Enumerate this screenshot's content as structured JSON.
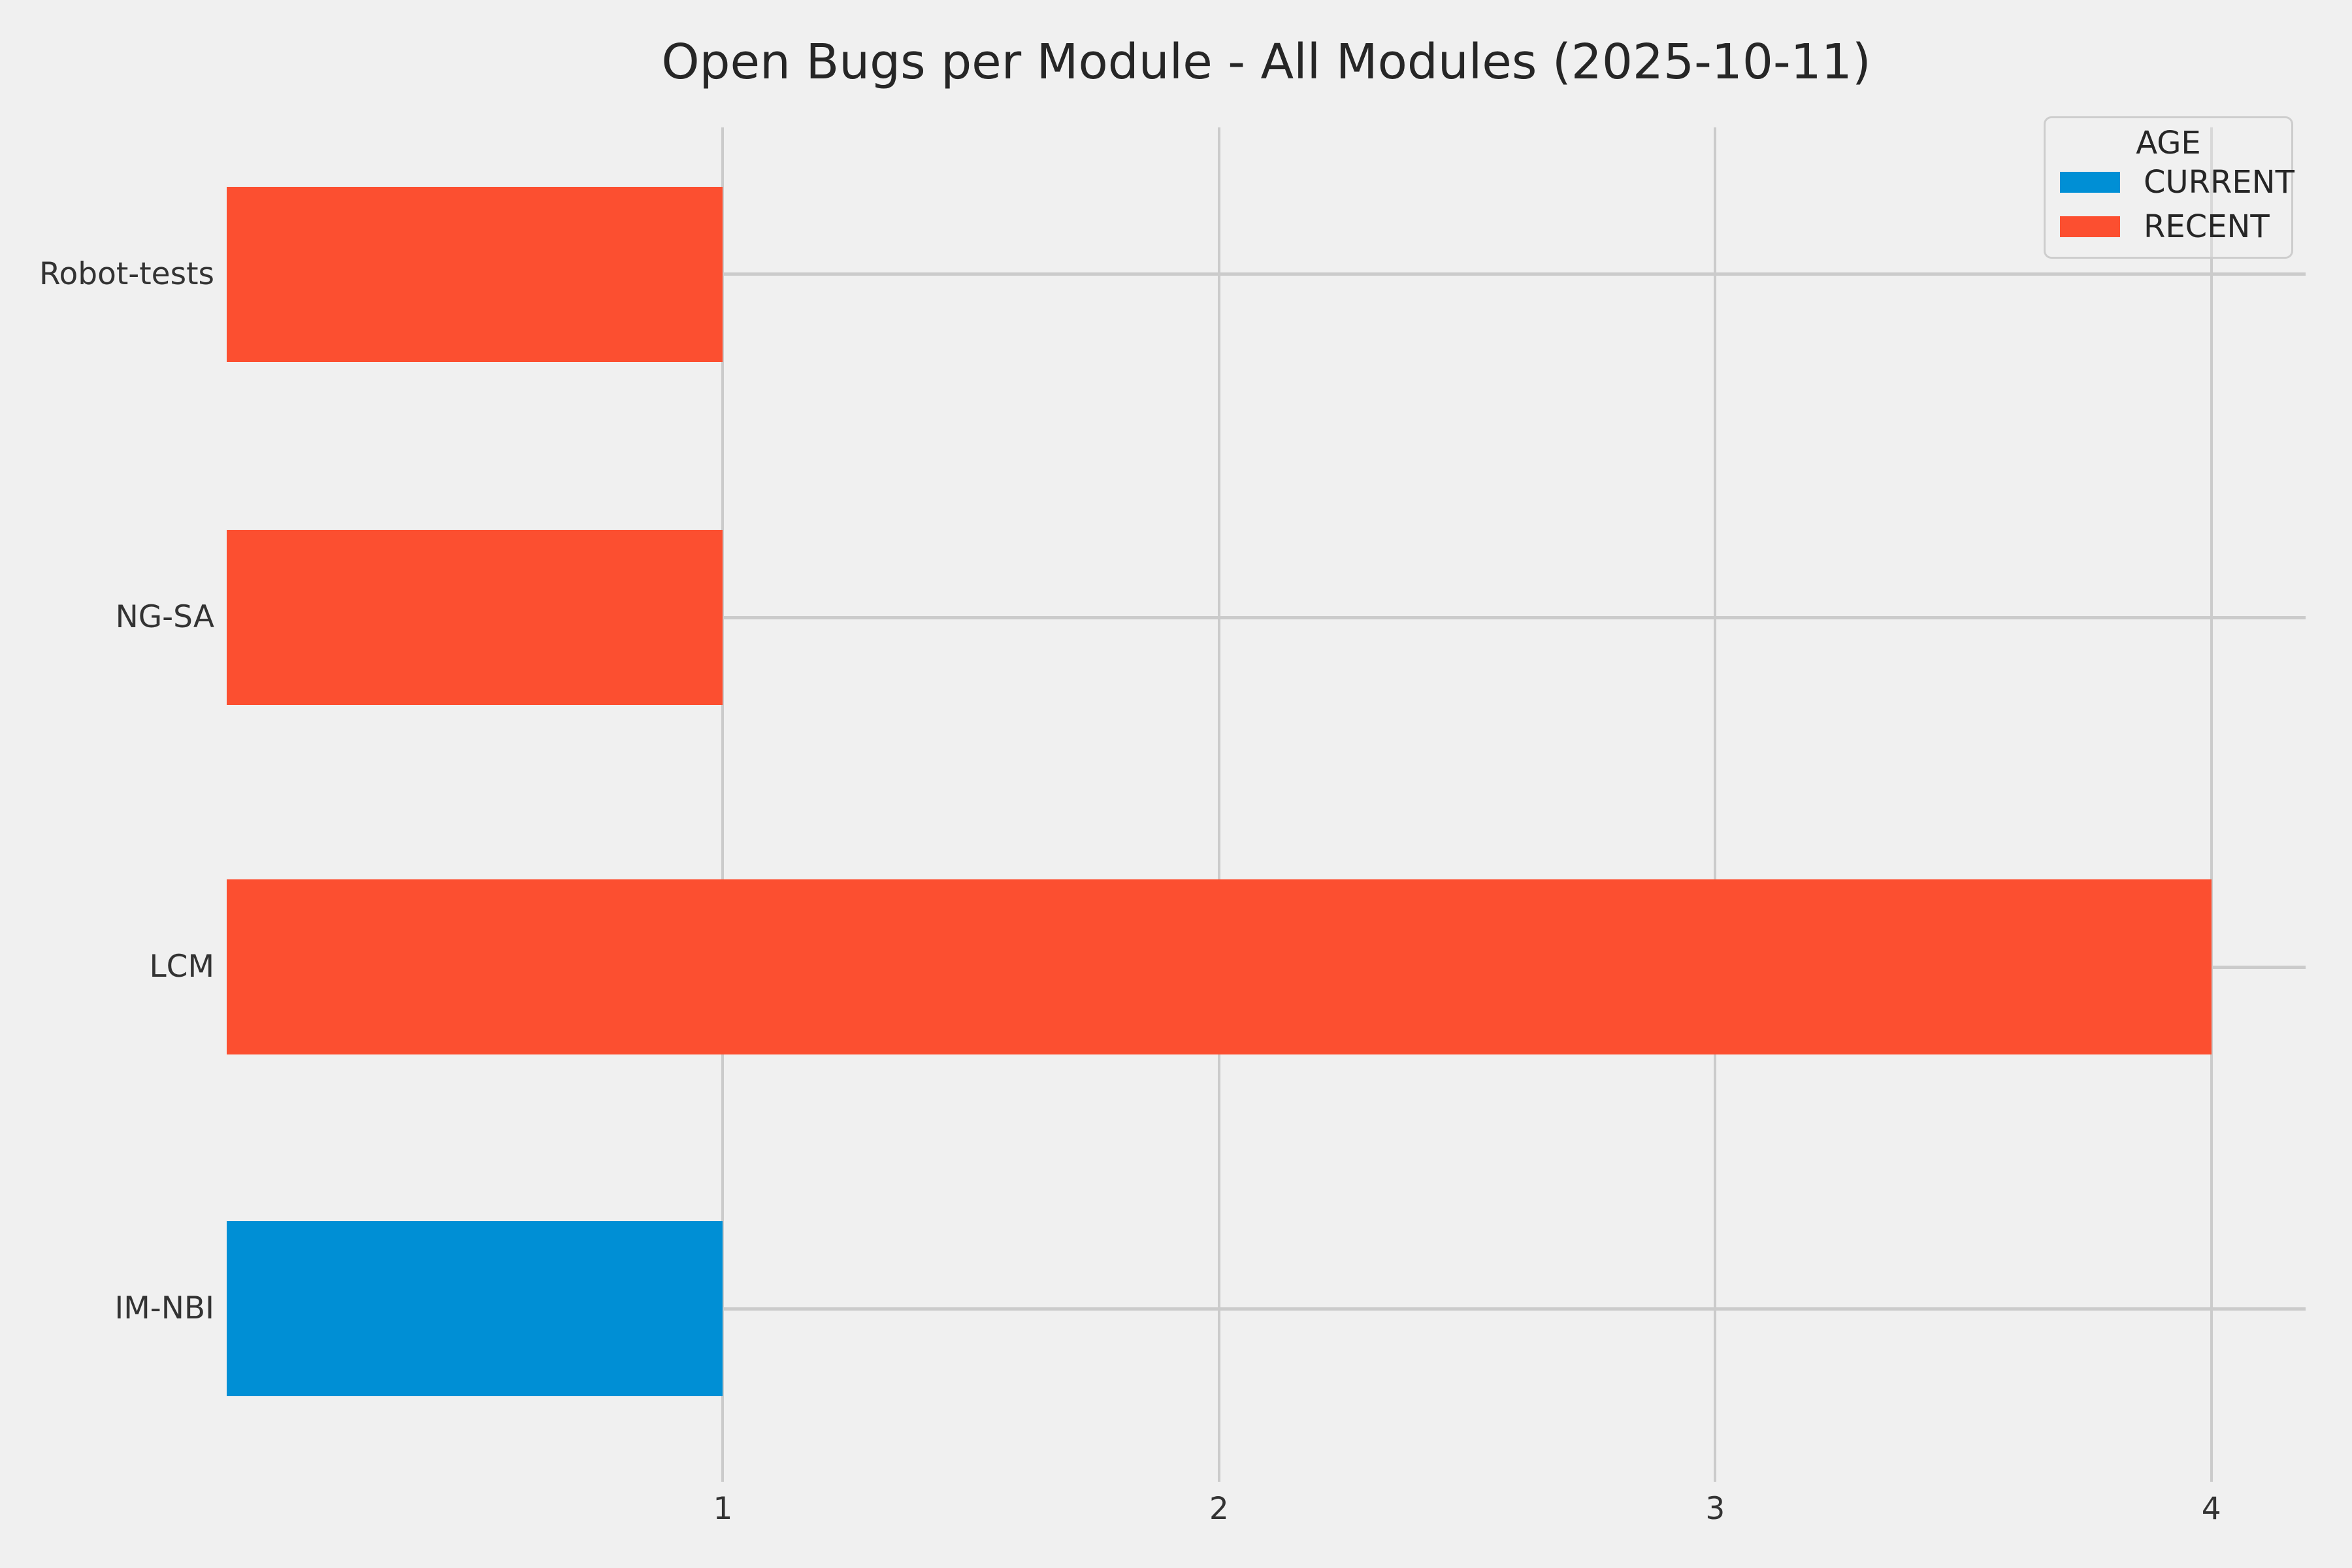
{
  "figure": {
    "background_color": "#f0f0f0",
    "grid_color": "#cbcbcb",
    "text_color": "#333333"
  },
  "chart_data": {
    "type": "bar",
    "orientation": "horizontal",
    "title": "Open Bugs per Module - All Modules (2025-10-11)",
    "categories": [
      "Robot-tests",
      "NG-SA",
      "LCM",
      "IM-NBI"
    ],
    "bars": [
      {
        "category": "Robot-tests",
        "value": 1,
        "series": "RECENT",
        "color": "#fc4f30"
      },
      {
        "category": "NG-SA",
        "value": 1,
        "series": "RECENT",
        "color": "#fc4f30"
      },
      {
        "category": "LCM",
        "value": 4,
        "series": "RECENT",
        "color": "#fc4f30"
      },
      {
        "category": "IM-NBI",
        "value": 1,
        "series": "CURRENT",
        "color": "#008fd5"
      }
    ],
    "series": [
      {
        "name": "CURRENT",
        "color": "#008fd5"
      },
      {
        "name": "RECENT",
        "color": "#fc4f30"
      }
    ],
    "xlabel": "",
    "ylabel": "",
    "xticks": [
      1,
      2,
      3,
      4
    ],
    "xlim": [
      0,
      4.19
    ],
    "grid": true,
    "legend": {
      "title": "AGE",
      "position": "upper-right"
    }
  }
}
